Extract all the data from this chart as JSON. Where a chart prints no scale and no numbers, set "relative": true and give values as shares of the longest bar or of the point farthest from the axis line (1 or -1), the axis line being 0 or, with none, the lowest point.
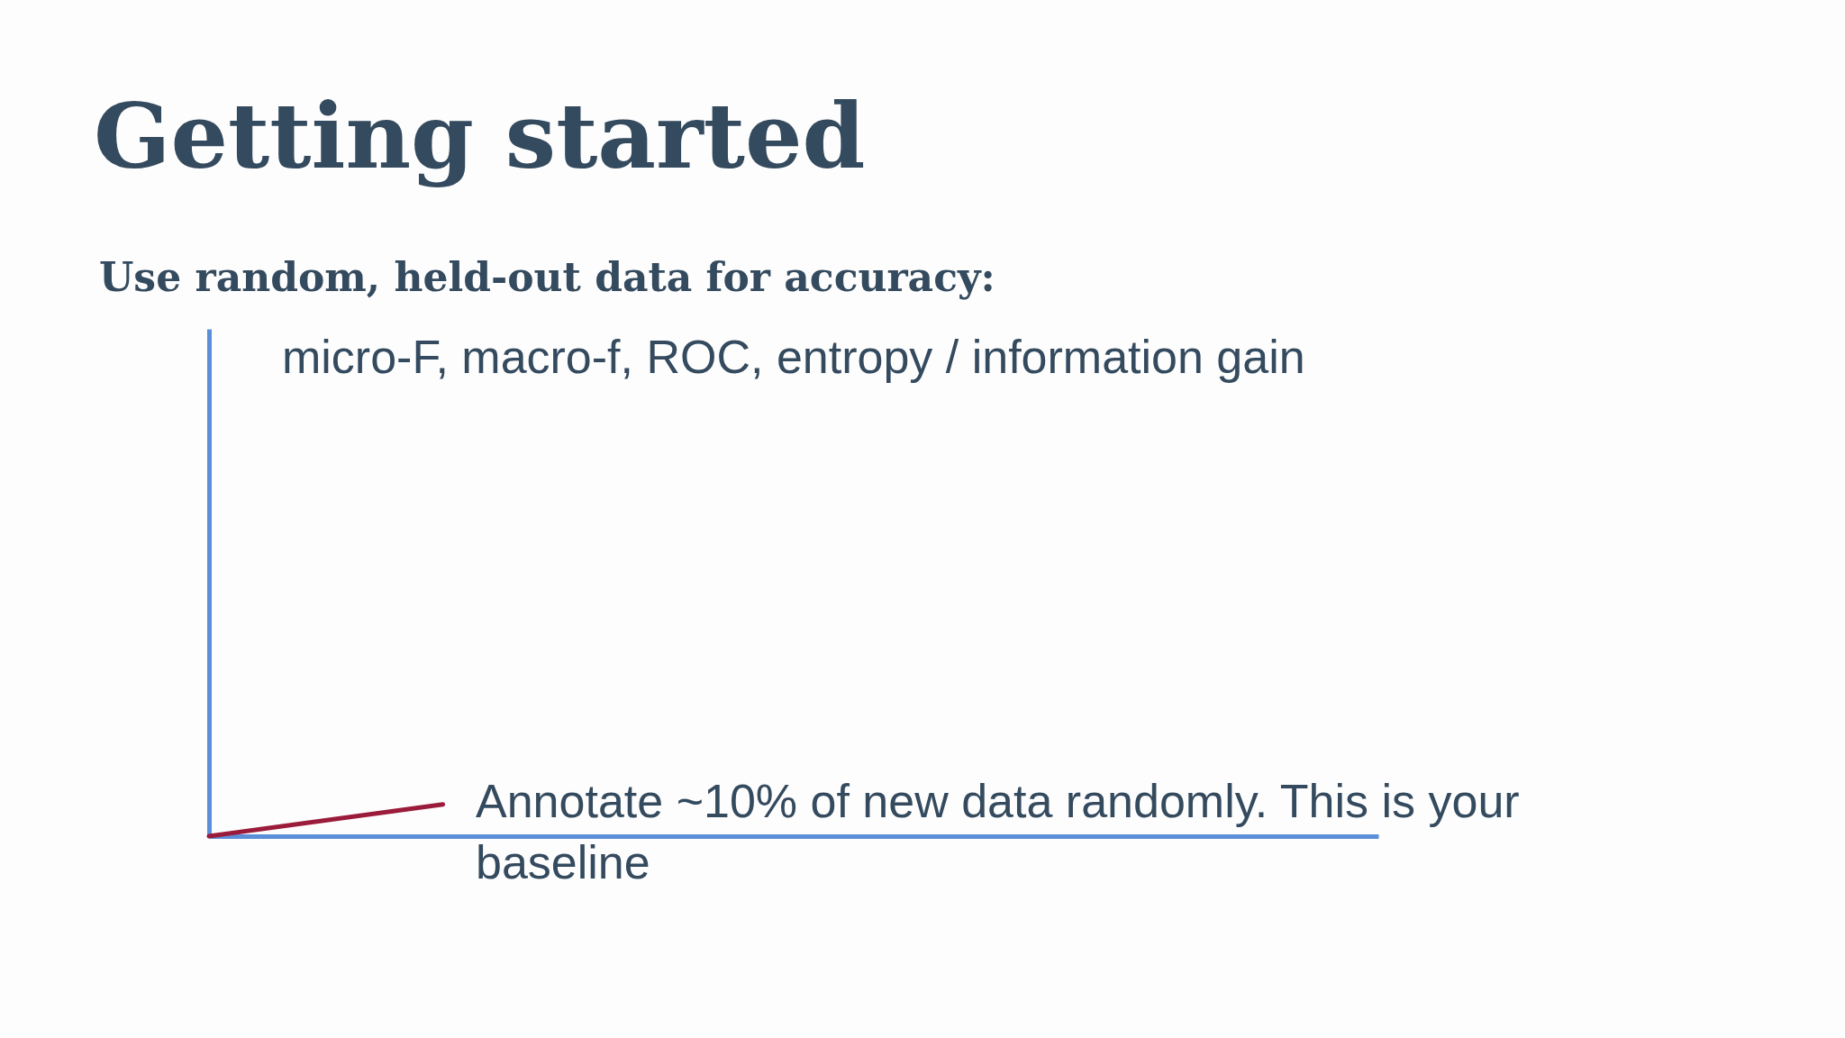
{
  "chart_data": {
    "type": "line",
    "title": "Getting started",
    "subtitle": "Use random, held-out data for accuracy:",
    "annotations": [
      "micro-F, macro-f, ROC, entropy / information gain",
      "Annotate ~10% of new data randomly. This is your baseline"
    ],
    "categories": [
      null,
      null,
      null,
      null,
      null,
      null
    ],
    "relative": true,
    "series": [
      {
        "color": "#9b1b3a",
        "values": [
          0,
          1,
          null,
          null,
          null,
          null
        ]
      }
    ],
    "grid": false,
    "marker": "none",
    "line_style": "solid",
    "tick_labels": false
  }
}
